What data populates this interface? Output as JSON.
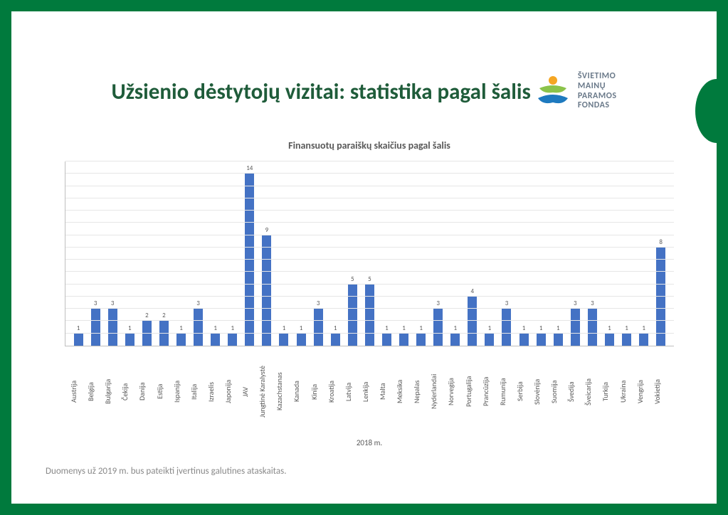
{
  "title": "Užsienio dėstytojų vizitai: statistika pagal šalis",
  "logo": {
    "line1": "ŠVIETIMO",
    "line2": "MAINŲ",
    "line3": "PARAMOS",
    "line4": "FONDAS",
    "text_color": "#6b7a8a",
    "dot_color": "#f5a623",
    "swoosh_top_color": "#8bc34a",
    "swoosh_bottom_color": "#1e7abf"
  },
  "chart": {
    "type": "bar",
    "title": "Finansuotų paraiškų skaičius pagal šalis",
    "x_axis_title": "2018 m.",
    "categories": [
      "Austrija",
      "Belgija",
      "Bulgarija",
      "Čekija",
      "Danija",
      "Estija",
      "Ispanija",
      "Italija",
      "Izraelis",
      "Japonija",
      "JAV",
      "Jungtinė Karalystė",
      "Kazachstanas",
      "Kanada",
      "Kinija",
      "Kroatija",
      "Latvija",
      "Lenkija",
      "Malta",
      "Meksika",
      "Nepalas",
      "Nyderlandai",
      "Norvegija",
      "Portugalija",
      "Prancūzija",
      "Rumunija",
      "Serbija",
      "Slovėnija",
      "Suomija",
      "Švedija",
      "Šveicarija",
      "Turkija",
      "Ukraina",
      "Vengrija",
      "Vokietija"
    ],
    "values": [
      1,
      3,
      3,
      1,
      2,
      2,
      1,
      3,
      1,
      1,
      14,
      9,
      1,
      1,
      3,
      1,
      5,
      5,
      1,
      1,
      1,
      3,
      1,
      4,
      1,
      3,
      1,
      1,
      1,
      3,
      3,
      1,
      1,
      1,
      8
    ],
    "bar_color": "#4472c4",
    "ylim": [
      0,
      15
    ],
    "grid_color": "#e6e6e6",
    "axis_color": "#bfbfbf",
    "title_fontsize": 14,
    "value_label_fontsize": 9,
    "x_label_fontsize": 10,
    "background_color": "#ffffff"
  },
  "footnote": "Duomenys už 2019 m. bus pateikti įvertinus galutines ataskaitas.",
  "frame_color": "#007a3d"
}
